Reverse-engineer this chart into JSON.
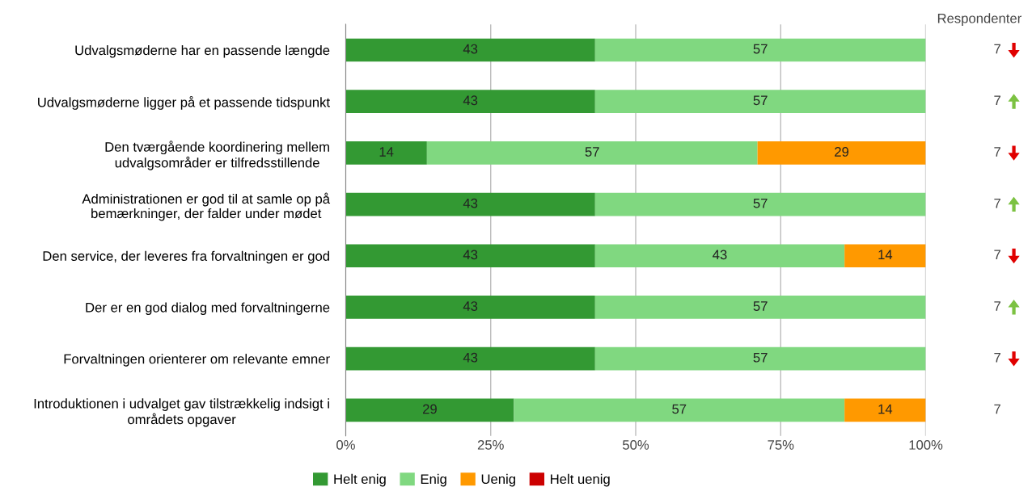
{
  "chart_data": {
    "type": "bar",
    "orientation": "horizontal",
    "stacked": true,
    "data_labels": true,
    "categories": [
      "Udvalgsmøderne har en passende længde",
      "Udvalgsmøderne ligger på et passende tidspunkt",
      "Den tværgående koordinering mellem\nudvalgsområder er tilfredsstillende",
      "Administrationen er god til at samle op på\nbemærkninger, der falder under mødet",
      "Den service, der leveres fra forvaltningen er god",
      "Der er en god dialog med forvaltningerne",
      "Forvaltningen orienterer om relevante emner",
      "Introduktionen i udvalget gav tilstrækkelig indsigt i\nområdets opgaver"
    ],
    "series": [
      {
        "name": "Helt enig",
        "color": "#339933",
        "values": [
          43,
          43,
          14,
          43,
          43,
          43,
          43,
          29
        ]
      },
      {
        "name": "Enig",
        "color": "#80d880",
        "values": [
          57,
          57,
          57,
          57,
          43,
          57,
          57,
          57
        ]
      },
      {
        "name": "Uenig",
        "color": "#ff9900",
        "values": [
          null,
          null,
          29,
          null,
          14,
          null,
          null,
          14
        ]
      },
      {
        "name": "Helt uenig",
        "color": "#cc0000",
        "values": [
          null,
          null,
          null,
          null,
          null,
          null,
          null,
          null
        ]
      }
    ],
    "xlim": [
      0,
      100
    ],
    "xticks": [
      {
        "value": 0,
        "label": "0%"
      },
      {
        "value": 25,
        "label": "25%"
      },
      {
        "value": 50,
        "label": "50%"
      },
      {
        "value": 75,
        "label": "75%"
      },
      {
        "value": 100,
        "label": "100%"
      }
    ],
    "grid": "x",
    "legend": "bottom",
    "annotations": [
      "Respondenter",
      "7",
      "7",
      "7",
      "7",
      "7",
      "7",
      "7",
      "7"
    ]
  }
}
